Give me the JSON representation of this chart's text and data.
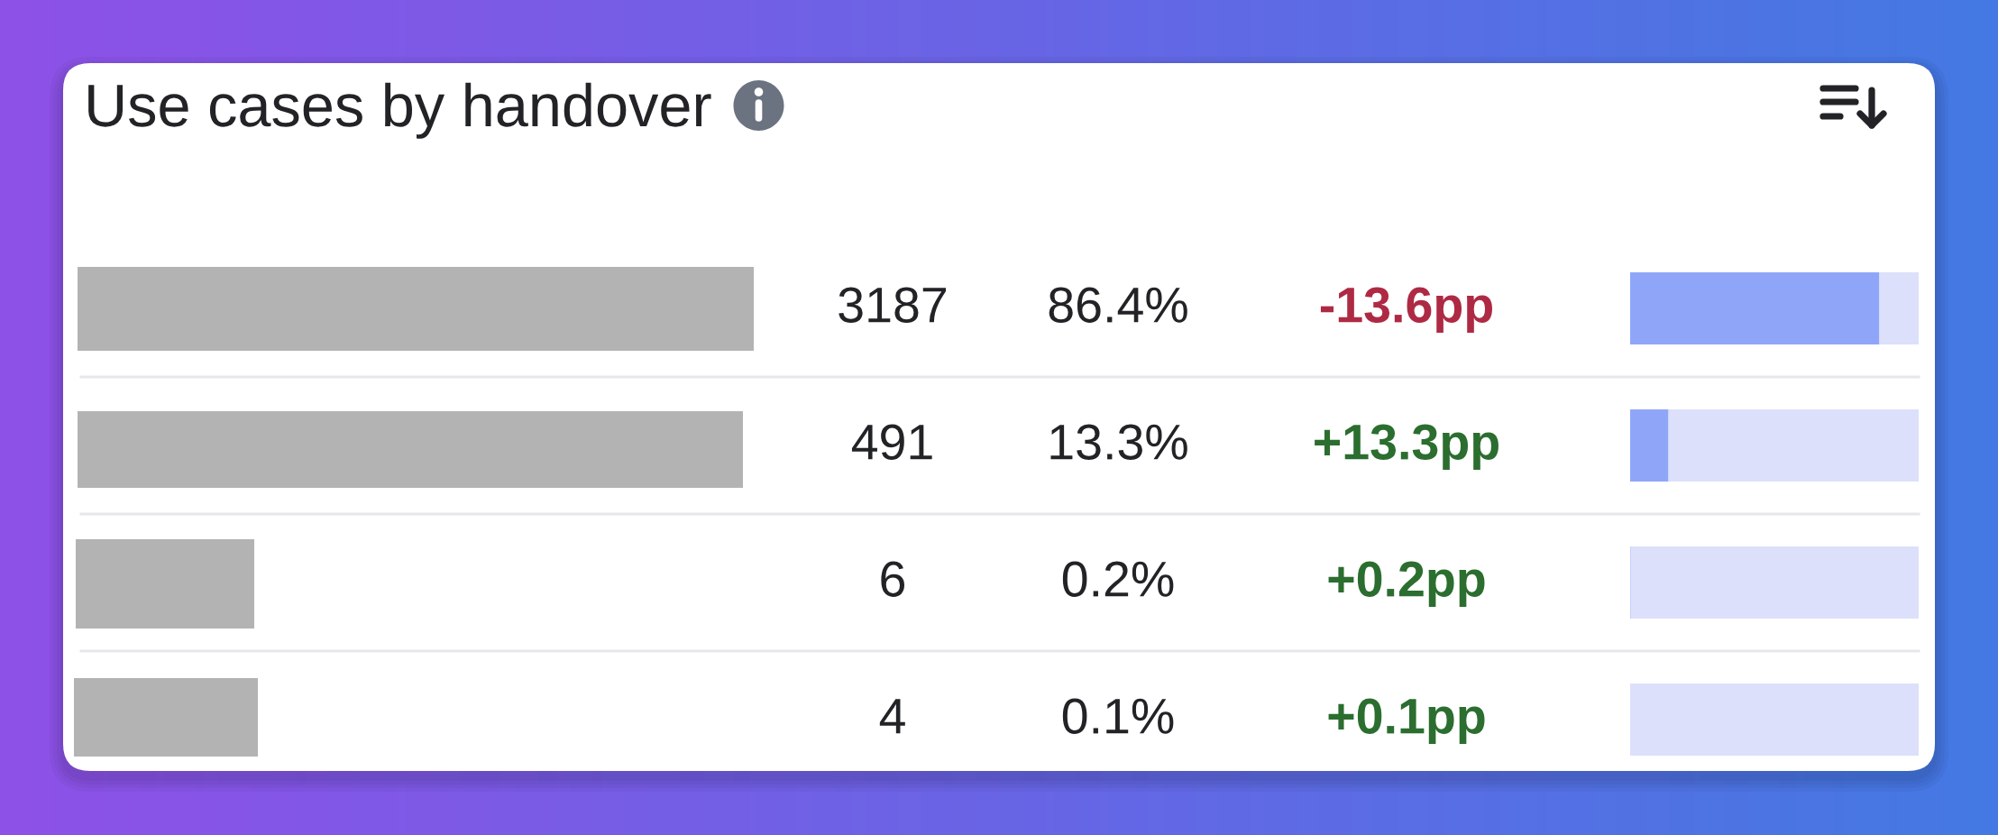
{
  "chart_data": {
    "type": "bar",
    "orientation": "horizontal",
    "stacked": true,
    "title": "Use cases by handover",
    "categories": [
      null,
      null,
      null,
      null
    ],
    "xlim": [
      0,
      100
    ],
    "tick_labels": false,
    "series": [
      {
        "color": "#8fa6f8",
        "values": [
          86.4,
          13.3,
          0.2,
          0.1
        ],
        "value_labels": [
          "86.4%",
          "13.3%",
          "0.2%",
          "0.1%"
        ]
      },
      {
        "color": "#dce0fa",
        "values": [
          13.6,
          86.7,
          99.8,
          99.9
        ]
      }
    ],
    "annotations": [
      "3187",
      "491",
      "6",
      "4",
      "-13.6pp",
      "+13.3pp",
      "+0.2pp",
      "+0.1pp"
    ]
  }
}
